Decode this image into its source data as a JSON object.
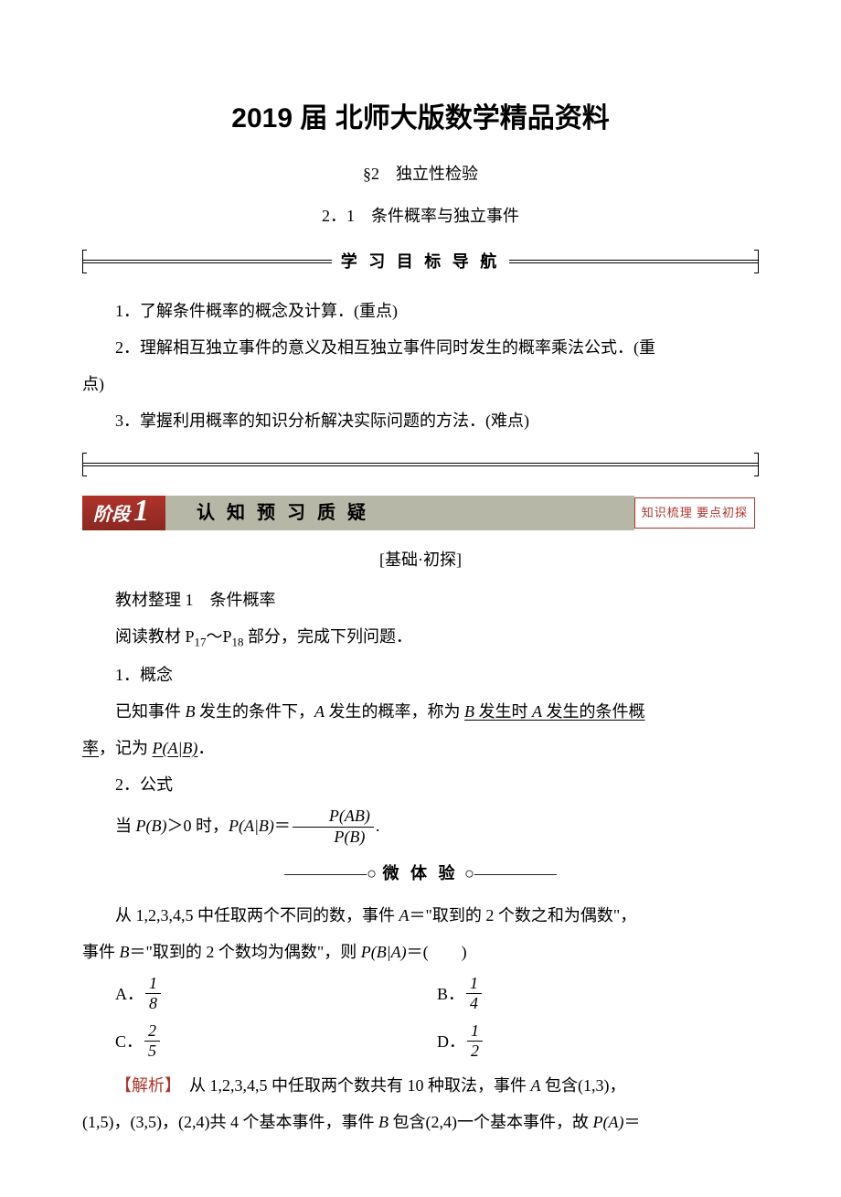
{
  "header": {
    "main_title": "2019 届 北师大版数学精品资料",
    "sub_title": "§2　独立性检验",
    "section_number": "2．1　条件概率与独立事件"
  },
  "nav": {
    "banner_text": "学 习 目 标 导 航"
  },
  "objectives": {
    "item1": "1．了解条件概率的概念及计算．(重点)",
    "item2_part1": "2．理解相互独立事件的意义及相互独立事件同时发生的概率乘法公式．(重",
    "item2_part2": "点)",
    "item3": "3．掌握利用概率的知识分析解决实际问题的方法．(难点)"
  },
  "phase": {
    "label": "阶段",
    "number": "1",
    "title": "认 知 预 习 质 疑",
    "tag": "知识梳理 要点初探"
  },
  "basics": {
    "heading": "[基础·初探]",
    "material_title": "教材整理 1　条件概率",
    "reading_prefix": "阅读教材 P",
    "page_from": "17",
    "tilde": "～",
    "page_to": "18",
    "reading_suffix": " 部分，完成下列问题．",
    "concept_label": "1．概念",
    "concept_text_prefix": "已知事件 ",
    "concept_text_1": " 发生的条件下，",
    "concept_text_2": " 发生的概率，称为 ",
    "concept_underline_1": " 发生时 ",
    "concept_underline_2": " 发生的条件概",
    "concept_line2_prefix": "率",
    "concept_line2_mid": "，记为 ",
    "concept_line2_end": "．",
    "formula_label": "2．公式",
    "formula_prefix": "当 ",
    "formula_cond": "＞0 时，",
    "formula_eq": "＝",
    "formula_end": "."
  },
  "micro": {
    "divider_left": "—————",
    "text": "微 体 验",
    "divider_right": "—————"
  },
  "question": {
    "q_text_prefix": "从 1,2,3,4,5 中任取两个不同的数，事件 ",
    "q_text_1": "＝\"取到的 2 个数之和为偶数\"，",
    "q_line2_prefix": "事件 ",
    "q_line2_1": "＝\"取到的 2 个数均为偶数\"，则 ",
    "q_line2_end": "＝(　　)",
    "opt_a_label": "A．",
    "opt_b_label": "B．",
    "opt_c_label": "C．",
    "opt_d_label": "D．",
    "a_num": "1",
    "a_den": "8",
    "b_num": "1",
    "b_den": "4",
    "c_num": "2",
    "c_den": "5",
    "d_num": "1",
    "d_den": "2"
  },
  "analysis": {
    "label": "【解析】",
    "text_1": "　从 1,2,3,4,5 中任取两个数共有 10 种取法，事件 ",
    "text_2": " 包含(1,3)，",
    "line2_1": "(1,5)，(3,5)，(2,4)共 4 个基本事件，事件 ",
    "line2_2": " 包含(2,4)一个基本事件，故 ",
    "line2_3": "＝"
  },
  "sym": {
    "A": "A",
    "B": "B",
    "P": "P",
    "AB": "AB",
    "PAgB": "P(A|B)",
    "PBgA": "P(B|A)",
    "PAB": "P(AB)",
    "PB": "P(B)",
    "PA": "P(A)"
  }
}
